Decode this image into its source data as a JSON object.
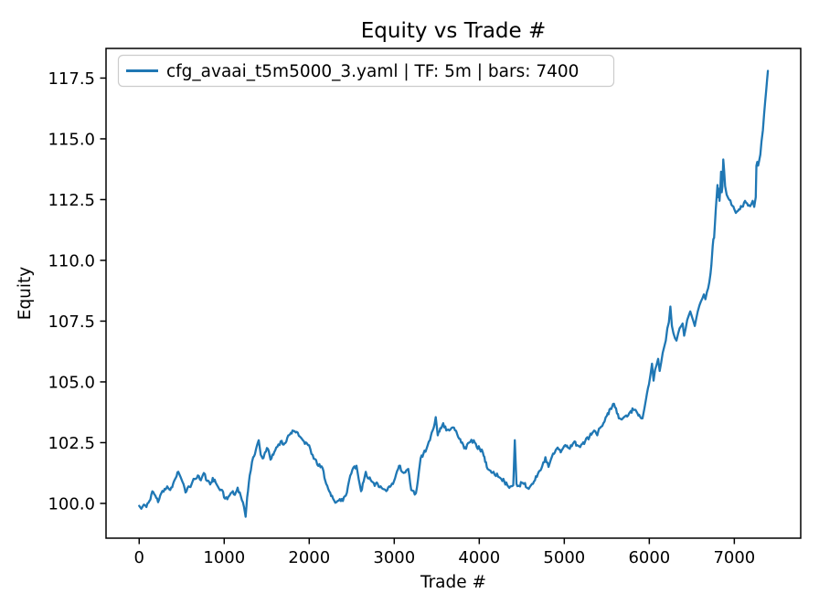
{
  "chart_data": {
    "type": "line",
    "title": "Equity vs Trade #",
    "xlabel": "Trade #",
    "ylabel": "Equity",
    "grid": false,
    "legend_position": "upper left",
    "xlim": [
      -390,
      7781
    ],
    "ylim": [
      98.57,
      118.72
    ],
    "x_ticks": [
      0,
      1000,
      2000,
      3000,
      4000,
      5000,
      6000,
      7000
    ],
    "x_tick_labels": [
      "0",
      "1000",
      "2000",
      "3000",
      "4000",
      "5000",
      "6000",
      "7000"
    ],
    "y_ticks": [
      100.0,
      102.5,
      105.0,
      107.5,
      110.0,
      112.5,
      115.0,
      117.5
    ],
    "y_tick_labels": [
      "100.0",
      "102.5",
      "105.0",
      "107.5",
      "110.0",
      "112.5",
      "115.0",
      "117.5"
    ],
    "colors": {
      "line": "#1f77b4",
      "spine": "#000000",
      "text": "#000000",
      "legend_border": "#cccccc",
      "background": "#ffffff"
    },
    "jitter": {
      "amplitude": 0.09,
      "step": 14,
      "seed": 11
    },
    "series": [
      {
        "name": "cfg_avaai_t5m5000_3.yaml | TF: 5m | bars: 7400",
        "color": "#1f77b4",
        "points": [
          [
            0,
            99.9
          ],
          [
            25,
            99.78
          ],
          [
            55,
            99.95
          ],
          [
            85,
            99.85
          ],
          [
            120,
            100.1
          ],
          [
            155,
            100.5
          ],
          [
            190,
            100.32
          ],
          [
            222,
            100.05
          ],
          [
            260,
            100.42
          ],
          [
            300,
            100.6
          ],
          [
            330,
            100.7
          ],
          [
            365,
            100.55
          ],
          [
            400,
            100.82
          ],
          [
            430,
            101.05
          ],
          [
            460,
            101.3
          ],
          [
            485,
            101.1
          ],
          [
            510,
            100.88
          ],
          [
            545,
            100.45
          ],
          [
            580,
            100.7
          ],
          [
            615,
            100.78
          ],
          [
            652,
            101.0
          ],
          [
            690,
            101.15
          ],
          [
            725,
            100.95
          ],
          [
            760,
            101.25
          ],
          [
            800,
            100.92
          ],
          [
            835,
            100.78
          ],
          [
            865,
            101.05
          ],
          [
            900,
            100.85
          ],
          [
            940,
            100.6
          ],
          [
            975,
            100.55
          ],
          [
            1010,
            100.2
          ],
          [
            1050,
            100.28
          ],
          [
            1090,
            100.45
          ],
          [
            1125,
            100.35
          ],
          [
            1158,
            100.65
          ],
          [
            1195,
            100.3
          ],
          [
            1233,
            99.85
          ],
          [
            1252,
            99.45
          ],
          [
            1270,
            100.25
          ],
          [
            1300,
            101.15
          ],
          [
            1341,
            101.9
          ],
          [
            1372,
            102.2
          ],
          [
            1406,
            102.6
          ],
          [
            1430,
            102.0
          ],
          [
            1452,
            101.85
          ],
          [
            1480,
            102.1
          ],
          [
            1513,
            102.25
          ],
          [
            1545,
            101.8
          ],
          [
            1578,
            102.0
          ],
          [
            1612,
            102.3
          ],
          [
            1664,
            102.55
          ],
          [
            1700,
            102.42
          ],
          [
            1742,
            102.7
          ],
          [
            1775,
            102.85
          ],
          [
            1803,
            103.0
          ],
          [
            1840,
            102.92
          ],
          [
            1878,
            102.78
          ],
          [
            1925,
            102.6
          ],
          [
            1986,
            102.4
          ],
          [
            2040,
            102.0
          ],
          [
            2094,
            101.6
          ],
          [
            2158,
            101.45
          ],
          [
            2200,
            100.8
          ],
          [
            2235,
            100.5
          ],
          [
            2280,
            100.2
          ],
          [
            2320,
            100.05
          ],
          [
            2360,
            100.18
          ],
          [
            2396,
            100.1
          ],
          [
            2430,
            100.32
          ],
          [
            2470,
            100.95
          ],
          [
            2520,
            101.48
          ],
          [
            2556,
            101.55
          ],
          [
            2582,
            101.0
          ],
          [
            2610,
            100.5
          ],
          [
            2640,
            100.9
          ],
          [
            2665,
            101.3
          ],
          [
            2700,
            101.02
          ],
          [
            2735,
            100.9
          ],
          [
            2770,
            100.72
          ],
          [
            2806,
            100.8
          ],
          [
            2850,
            100.65
          ],
          [
            2896,
            100.55
          ],
          [
            2940,
            100.7
          ],
          [
            2985,
            100.8
          ],
          [
            3022,
            101.2
          ],
          [
            3057,
            101.55
          ],
          [
            3092,
            101.3
          ],
          [
            3112,
            101.25
          ],
          [
            3140,
            101.35
          ],
          [
            3165,
            101.42
          ],
          [
            3200,
            100.55
          ],
          [
            3255,
            100.42
          ],
          [
            3290,
            101.3
          ],
          [
            3310,
            101.85
          ],
          [
            3344,
            102.05
          ],
          [
            3380,
            102.25
          ],
          [
            3420,
            102.6
          ],
          [
            3452,
            103.0
          ],
          [
            3488,
            103.55
          ],
          [
            3512,
            102.8
          ],
          [
            3542,
            103.1
          ],
          [
            3576,
            103.3
          ],
          [
            3612,
            103.0
          ],
          [
            3648,
            103.0
          ],
          [
            3702,
            103.12
          ],
          [
            3740,
            102.85
          ],
          [
            3775,
            102.65
          ],
          [
            3812,
            102.4
          ],
          [
            3845,
            102.25
          ],
          [
            3880,
            102.5
          ],
          [
            3935,
            102.6
          ],
          [
            3972,
            102.3
          ],
          [
            4005,
            102.25
          ],
          [
            4042,
            102.1
          ],
          [
            4070,
            101.7
          ],
          [
            4098,
            101.42
          ],
          [
            4132,
            101.35
          ],
          [
            4168,
            101.3
          ],
          [
            4222,
            101.1
          ],
          [
            4260,
            101.0
          ],
          [
            4295,
            100.9
          ],
          [
            4330,
            100.75
          ],
          [
            4365,
            100.7
          ],
          [
            4400,
            100.75
          ],
          [
            4418,
            102.6
          ],
          [
            4438,
            100.8
          ],
          [
            4470,
            100.72
          ],
          [
            4500,
            100.85
          ],
          [
            4528,
            100.8
          ],
          [
            4558,
            100.65
          ],
          [
            4582,
            100.6
          ],
          [
            4620,
            100.8
          ],
          [
            4655,
            100.95
          ],
          [
            4700,
            101.3
          ],
          [
            4742,
            101.55
          ],
          [
            4778,
            101.9
          ],
          [
            4815,
            101.5
          ],
          [
            4842,
            101.8
          ],
          [
            4868,
            102.05
          ],
          [
            4900,
            102.2
          ],
          [
            4922,
            102.3
          ],
          [
            4958,
            102.1
          ],
          [
            5012,
            102.4
          ],
          [
            5042,
            102.3
          ],
          [
            5065,
            102.25
          ],
          [
            5100,
            102.45
          ],
          [
            5120,
            102.55
          ],
          [
            5150,
            102.4
          ],
          [
            5175,
            102.35
          ],
          [
            5212,
            102.45
          ],
          [
            5245,
            102.55
          ],
          [
            5298,
            102.75
          ],
          [
            5330,
            102.9
          ],
          [
            5352,
            103.0
          ],
          [
            5388,
            102.8
          ],
          [
            5420,
            103.1
          ],
          [
            5460,
            103.3
          ],
          [
            5500,
            103.6
          ],
          [
            5542,
            103.9
          ],
          [
            5585,
            104.1
          ],
          [
            5620,
            103.7
          ],
          [
            5652,
            103.5
          ],
          [
            5675,
            103.45
          ],
          [
            5702,
            103.55
          ],
          [
            5728,
            103.62
          ],
          [
            5762,
            103.7
          ],
          [
            5782,
            103.8
          ],
          [
            5812,
            103.85
          ],
          [
            5838,
            103.85
          ],
          [
            5862,
            103.7
          ],
          [
            5890,
            103.58
          ],
          [
            5920,
            103.5
          ],
          [
            5942,
            103.9
          ],
          [
            5962,
            104.3
          ],
          [
            5996,
            104.9
          ],
          [
            6014,
            105.3
          ],
          [
            6032,
            105.75
          ],
          [
            6050,
            105.05
          ],
          [
            6068,
            105.5
          ],
          [
            6086,
            105.7
          ],
          [
            6104,
            105.95
          ],
          [
            6122,
            105.45
          ],
          [
            6140,
            105.8
          ],
          [
            6158,
            106.2
          ],
          [
            6176,
            106.45
          ],
          [
            6194,
            106.7
          ],
          [
            6212,
            107.2
          ],
          [
            6230,
            107.45
          ],
          [
            6248,
            108.1
          ],
          [
            6266,
            107.3
          ],
          [
            6284,
            107.0
          ],
          [
            6302,
            106.8
          ],
          [
            6320,
            106.7
          ],
          [
            6340,
            107.0
          ],
          [
            6356,
            107.2
          ],
          [
            6375,
            107.3
          ],
          [
            6392,
            107.4
          ],
          [
            6410,
            106.9
          ],
          [
            6428,
            107.2
          ],
          [
            6446,
            107.55
          ],
          [
            6466,
            107.75
          ],
          [
            6482,
            107.9
          ],
          [
            6500,
            107.7
          ],
          [
            6518,
            107.5
          ],
          [
            6535,
            107.3
          ],
          [
            6552,
            107.6
          ],
          [
            6570,
            107.9
          ],
          [
            6590,
            108.15
          ],
          [
            6606,
            108.3
          ],
          [
            6626,
            108.45
          ],
          [
            6642,
            108.6
          ],
          [
            6660,
            108.4
          ],
          [
            6678,
            108.7
          ],
          [
            6692,
            108.85
          ],
          [
            6706,
            109.1
          ],
          [
            6720,
            109.45
          ],
          [
            6730,
            109.8
          ],
          [
            6738,
            110.2
          ],
          [
            6746,
            110.6
          ],
          [
            6754,
            110.88
          ],
          [
            6762,
            110.92
          ],
          [
            6772,
            111.5
          ],
          [
            6782,
            112.1
          ],
          [
            6792,
            112.6
          ],
          [
            6802,
            113.1
          ],
          [
            6810,
            112.6
          ],
          [
            6818,
            112.95
          ],
          [
            6826,
            112.45
          ],
          [
            6836,
            113.0
          ],
          [
            6844,
            113.65
          ],
          [
            6852,
            112.8
          ],
          [
            6860,
            113.05
          ],
          [
            6870,
            114.15
          ],
          [
            6880,
            113.7
          ],
          [
            6892,
            113.05
          ],
          [
            6910,
            112.7
          ],
          [
            6930,
            112.55
          ],
          [
            6965,
            112.3
          ],
          [
            7000,
            112.1
          ],
          [
            7018,
            111.95
          ],
          [
            7054,
            112.1
          ],
          [
            7090,
            112.2
          ],
          [
            7126,
            112.45
          ],
          [
            7162,
            112.25
          ],
          [
            7198,
            112.3
          ],
          [
            7216,
            112.45
          ],
          [
            7234,
            112.2
          ],
          [
            7252,
            112.6
          ],
          [
            7260,
            113.9
          ],
          [
            7270,
            114.05
          ],
          [
            7280,
            113.9
          ],
          [
            7292,
            114.1
          ],
          [
            7306,
            114.35
          ],
          [
            7320,
            114.9
          ],
          [
            7336,
            115.35
          ],
          [
            7350,
            116.0
          ],
          [
            7362,
            116.5
          ],
          [
            7375,
            117.0
          ],
          [
            7386,
            117.45
          ],
          [
            7395,
            117.8
          ]
        ]
      }
    ]
  }
}
